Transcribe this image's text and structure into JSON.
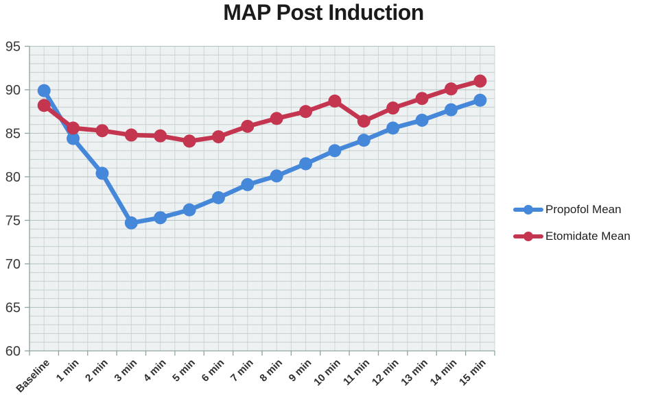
{
  "title": "MAP Post Induction",
  "chart_data": {
    "type": "line",
    "title": "MAP Post Induction",
    "categories": [
      "Baseline",
      "1 min",
      "2 min",
      "3 min",
      "4 min",
      "5 min",
      "6 min",
      "7 min",
      "8 min",
      "9 min",
      "10 min",
      "11 min",
      "12 min",
      "13 min",
      "14 min",
      "15 min"
    ],
    "series": [
      {
        "name": "Propofol Mean",
        "color": "#4587d8",
        "values": [
          89.9,
          84.4,
          80.4,
          74.7,
          75.3,
          76.2,
          77.6,
          79.1,
          80.1,
          81.5,
          83.0,
          84.2,
          85.6,
          86.5,
          87.7,
          88.8
        ]
      },
      {
        "name": "Etomidate Mean",
        "color": "#c43550",
        "values": [
          88.2,
          85.6,
          85.3,
          84.8,
          84.7,
          84.1,
          84.6,
          85.8,
          86.7,
          87.5,
          88.7,
          86.4,
          87.9,
          89.0,
          90.1,
          91.0
        ]
      }
    ],
    "xlabel": "",
    "ylabel": "",
    "ylim": [
      60,
      95
    ],
    "yticks": [
      60,
      65,
      70,
      75,
      80,
      85,
      90,
      95
    ],
    "grid": true,
    "legend_position": "right",
    "marker": "circle"
  }
}
